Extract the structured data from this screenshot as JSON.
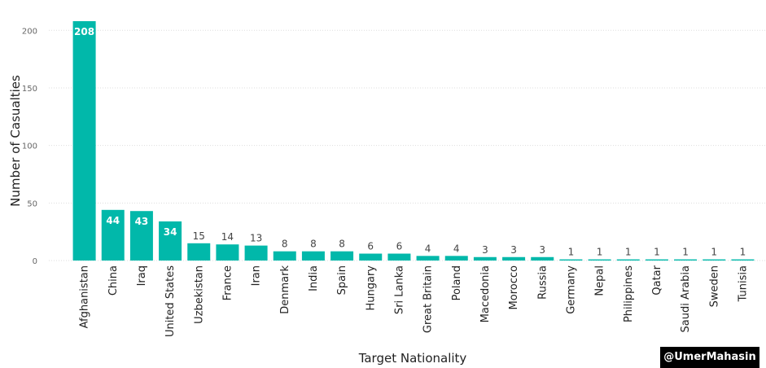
{
  "chart_data": {
    "type": "bar",
    "title": "",
    "xlabel": "Target Nationality",
    "ylabel": "Number of Casualties",
    "ylim": [
      0,
      208
    ],
    "yticks": [
      0,
      50,
      100,
      150,
      200
    ],
    "grid": true,
    "bar_color": "#01B8AA",
    "categories": [
      "Afghanistan",
      "China",
      "Iraq",
      "United States",
      "Uzbekistan",
      "France",
      "Iran",
      "Denmark",
      "India",
      "Spain",
      "Hungary",
      "Sri Lanka",
      "Great Britain",
      "Poland",
      "Macedonia",
      "Morocco",
      "Russia",
      "Germany",
      "Nepal",
      "Philippines",
      "Qatar",
      "Saudi Arabia",
      "Sweden",
      "Tunisia"
    ],
    "values": [
      208,
      44,
      43,
      34,
      15,
      14,
      13,
      8,
      8,
      8,
      6,
      6,
      4,
      4,
      3,
      3,
      3,
      1,
      1,
      1,
      1,
      1,
      1,
      1
    ]
  },
  "watermark": "@UmerMahasin"
}
